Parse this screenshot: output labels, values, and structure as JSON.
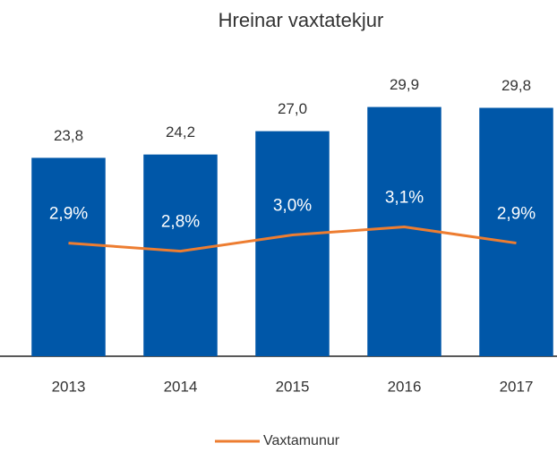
{
  "chart_data": {
    "type": "bar",
    "title": "Hreinar vaxtatekjur",
    "categories": [
      "2013",
      "2014",
      "2015",
      "2016",
      "2017"
    ],
    "series": [
      {
        "type": "bar",
        "color": "#0057a8",
        "values": [
          23.8,
          24.2,
          27.0,
          29.9,
          29.8
        ],
        "value_labels": [
          "23,8",
          "24,2",
          "27,0",
          "29,9",
          "29,8"
        ]
      },
      {
        "type": "line",
        "name": "Vaxtamunur",
        "axis": "y2",
        "color": "#ed7d31",
        "values": [
          2.9,
          2.8,
          3.0,
          3.1,
          2.9
        ],
        "value_labels": [
          "2,9%",
          "2,8%",
          "3,0%",
          "3,1%",
          "2,9%"
        ]
      }
    ],
    "ylim": [
      0,
      32
    ],
    "y2lim": [
      1.5,
      4.8
    ],
    "legend": "bottom"
  }
}
